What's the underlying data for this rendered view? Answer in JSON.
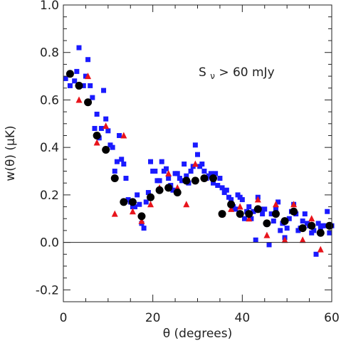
{
  "chart_data": {
    "type": "scatter",
    "title": "",
    "xlabel": "θ (degrees)",
    "ylabel": "w(θ) (μK)",
    "xlim": [
      0,
      60
    ],
    "ylim": [
      -0.25,
      1.0
    ],
    "x_ticks": [
      0,
      20,
      40,
      60
    ],
    "x_tick_labels": [
      "0",
      "20",
      "40",
      "60"
    ],
    "y_ticks": [
      -0.2,
      0.0,
      0.2,
      0.4,
      0.6,
      0.8,
      1.0
    ],
    "y_tick_labels": [
      "-0.2",
      "0.0",
      "0.2",
      "0.4",
      "0.6",
      "0.8",
      "1.0"
    ],
    "zero_line": true,
    "grid": false,
    "annotation": {
      "text_main": "S",
      "text_sub": "ν",
      "text_rest": " > 60 mJy"
    },
    "series": [
      {
        "marker": "circle",
        "color": "#000000",
        "points": [
          [
            1.5,
            0.71
          ],
          [
            3.5,
            0.66
          ],
          [
            5.5,
            0.59
          ],
          [
            7.5,
            0.45
          ],
          [
            9.5,
            0.39
          ],
          [
            11.5,
            0.27
          ],
          [
            13.5,
            0.17
          ],
          [
            15.5,
            0.17
          ],
          [
            17.5,
            0.11
          ],
          [
            19.5,
            0.19
          ],
          [
            21.5,
            0.22
          ],
          [
            23.5,
            0.23
          ],
          [
            25.5,
            0.21
          ],
          [
            27.5,
            0.26
          ],
          [
            29.5,
            0.26
          ],
          [
            31.5,
            0.27
          ],
          [
            33.5,
            0.27
          ],
          [
            35.5,
            0.12
          ],
          [
            37.5,
            0.16
          ],
          [
            39.5,
            0.12
          ],
          [
            41.5,
            0.12
          ],
          [
            43.5,
            0.14
          ],
          [
            45.5,
            0.08
          ],
          [
            47.5,
            0.12
          ],
          [
            49.5,
            0.09
          ],
          [
            51.5,
            0.13
          ],
          [
            53.5,
            0.06
          ],
          [
            55.5,
            0.07
          ],
          [
            57.5,
            0.04
          ],
          [
            59.5,
            0.07
          ]
        ]
      },
      {
        "marker": "triangle",
        "color": "#e8141b",
        "points": [
          [
            1.5,
            0.71
          ],
          [
            3.5,
            0.6
          ],
          [
            5.5,
            0.7
          ],
          [
            7.5,
            0.42
          ],
          [
            9.5,
            0.49
          ],
          [
            11.5,
            0.12
          ],
          [
            13.5,
            0.45
          ],
          [
            15.5,
            0.13
          ],
          [
            17.5,
            0.09
          ],
          [
            19.5,
            0.16
          ],
          [
            21.5,
            0.23
          ],
          [
            23.5,
            0.29
          ],
          [
            25.5,
            0.23
          ],
          [
            27.5,
            0.16
          ],
          [
            29.5,
            0.33
          ],
          [
            31.5,
            0.27
          ],
          [
            33.5,
            0.27
          ],
          [
            35.5,
            0.12
          ],
          [
            37.5,
            0.14
          ],
          [
            39.5,
            0.15
          ],
          [
            41.5,
            0.1
          ],
          [
            43.5,
            0.18
          ],
          [
            45.5,
            0.03
          ],
          [
            47.5,
            0.16
          ],
          [
            49.5,
            0.01
          ],
          [
            51.5,
            0.16
          ],
          [
            53.5,
            0.01
          ],
          [
            55.5,
            0.1
          ],
          [
            57.5,
            -0.03
          ],
          [
            59.5,
            0.07
          ]
        ]
      },
      {
        "marker": "square",
        "color": "#1a1aff",
        "points": [
          [
            0.5,
            0.69
          ],
          [
            1.5,
            0.66
          ],
          [
            2.5,
            0.68
          ],
          [
            3.0,
            0.72
          ],
          [
            3.5,
            0.82
          ],
          [
            4.5,
            0.66
          ],
          [
            5.0,
            0.7
          ],
          [
            5.5,
            0.77
          ],
          [
            6.0,
            0.66
          ],
          [
            6.5,
            0.61
          ],
          [
            7.0,
            0.48
          ],
          [
            7.5,
            0.54
          ],
          [
            8.0,
            0.44
          ],
          [
            8.5,
            0.48
          ],
          [
            9.0,
            0.64
          ],
          [
            9.5,
            0.52
          ],
          [
            10.0,
            0.47
          ],
          [
            10.5,
            0.41
          ],
          [
            11.0,
            0.4
          ],
          [
            11.5,
            0.3
          ],
          [
            12.0,
            0.34
          ],
          [
            12.5,
            0.45
          ],
          [
            13.0,
            0.35
          ],
          [
            13.5,
            0.33
          ],
          [
            14.0,
            0.27
          ],
          [
            14.5,
            0.18
          ],
          [
            15.0,
            0.17
          ],
          [
            15.5,
            0.15
          ],
          [
            16.0,
            0.15
          ],
          [
            16.5,
            0.2
          ],
          [
            17.0,
            0.16
          ],
          [
            17.5,
            0.08
          ],
          [
            18.0,
            0.06
          ],
          [
            18.5,
            0.17
          ],
          [
            19.0,
            0.21
          ],
          [
            19.5,
            0.34
          ],
          [
            20.0,
            0.3
          ],
          [
            20.5,
            0.3
          ],
          [
            21.0,
            0.26
          ],
          [
            21.5,
            0.26
          ],
          [
            22.0,
            0.34
          ],
          [
            22.5,
            0.3
          ],
          [
            23.0,
            0.31
          ],
          [
            23.5,
            0.27
          ],
          [
            24.0,
            0.24
          ],
          [
            24.5,
            0.22
          ],
          [
            25.0,
            0.29
          ],
          [
            25.5,
            0.29
          ],
          [
            26.0,
            0.27
          ],
          [
            26.5,
            0.26
          ],
          [
            27.0,
            0.33
          ],
          [
            27.5,
            0.28
          ],
          [
            28.0,
            0.25
          ],
          [
            28.5,
            0.3
          ],
          [
            29.0,
            0.32
          ],
          [
            29.5,
            0.41
          ],
          [
            30.0,
            0.37
          ],
          [
            30.5,
            0.32
          ],
          [
            31.0,
            0.33
          ],
          [
            31.5,
            0.3
          ],
          [
            32.0,
            0.27
          ],
          [
            32.5,
            0.28
          ],
          [
            33.0,
            0.29
          ],
          [
            33.5,
            0.25
          ],
          [
            34.0,
            0.29
          ],
          [
            34.5,
            0.24
          ],
          [
            35.0,
            0.27
          ],
          [
            35.5,
            0.23
          ],
          [
            36.0,
            0.21
          ],
          [
            36.5,
            0.22
          ],
          [
            37.0,
            0.19
          ],
          [
            37.5,
            0.18
          ],
          [
            38.0,
            0.15
          ],
          [
            38.5,
            0.14
          ],
          [
            39.0,
            0.2
          ],
          [
            39.5,
            0.19
          ],
          [
            40.0,
            0.18
          ],
          [
            40.5,
            0.1
          ],
          [
            41.0,
            0.13
          ],
          [
            41.5,
            0.15
          ],
          [
            42.0,
            0.1
          ],
          [
            42.5,
            0.13
          ],
          [
            43.0,
            0.01
          ],
          [
            43.5,
            0.19
          ],
          [
            44.0,
            0.14
          ],
          [
            44.5,
            0.12
          ],
          [
            45.0,
            0.14
          ],
          [
            45.5,
            0.08
          ],
          [
            46.0,
            -0.01
          ],
          [
            46.5,
            0.12
          ],
          [
            47.0,
            0.09
          ],
          [
            47.5,
            0.14
          ],
          [
            48.0,
            0.17
          ],
          [
            48.5,
            0.05
          ],
          [
            49.0,
            0.08
          ],
          [
            49.5,
            0.02
          ],
          [
            50.0,
            0.06
          ],
          [
            50.5,
            0.1
          ],
          [
            51.0,
            0.13
          ],
          [
            51.5,
            0.16
          ],
          [
            52.0,
            0.12
          ],
          [
            52.5,
            0.05
          ],
          [
            53.0,
            0.06
          ],
          [
            53.5,
            0.09
          ],
          [
            54.0,
            0.12
          ],
          [
            54.5,
            0.08
          ],
          [
            55.0,
            0.07
          ],
          [
            55.5,
            0.04
          ],
          [
            56.0,
            0.05
          ],
          [
            56.5,
            -0.05
          ],
          [
            57.0,
            0.08
          ],
          [
            57.5,
            0.06
          ],
          [
            58.0,
            0.07
          ],
          [
            58.5,
            0.07
          ],
          [
            59.0,
            0.13
          ],
          [
            59.5,
            0.04
          ],
          [
            60.0,
            0.07
          ]
        ]
      }
    ]
  }
}
